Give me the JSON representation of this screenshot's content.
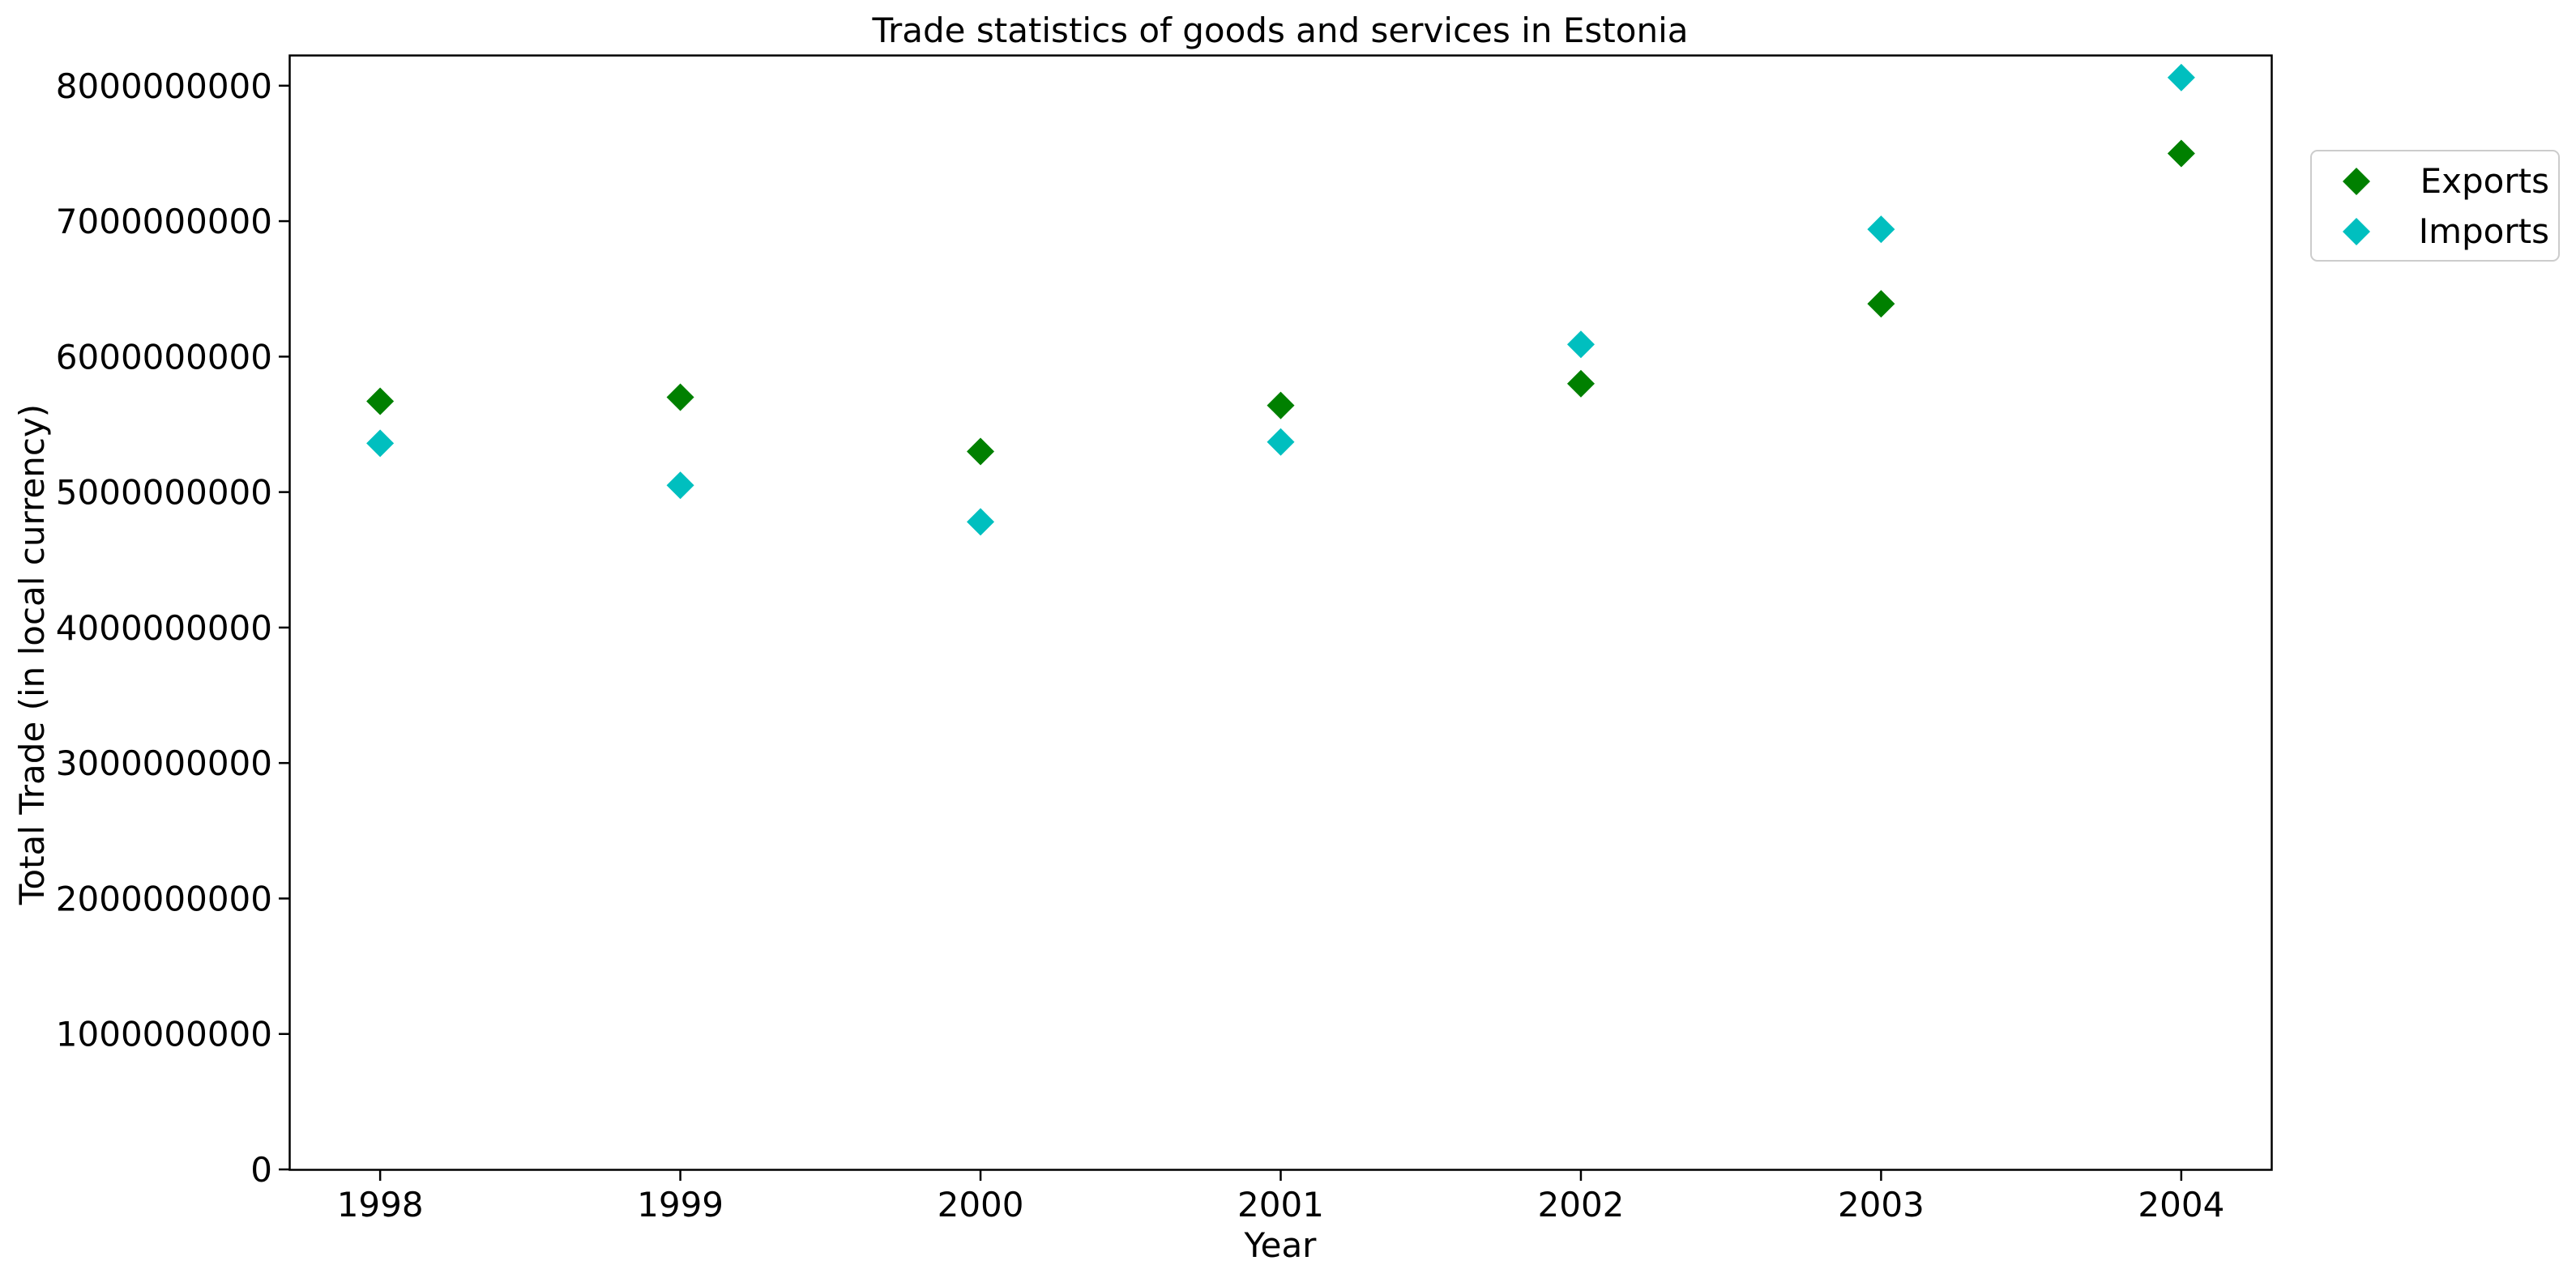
{
  "chart_data": {
    "type": "scatter",
    "title": "Trade statistics of goods and services in Estonia",
    "xlabel": "Year",
    "ylabel": "Total Trade (in local currency)",
    "x": [
      1998,
      1999,
      2000,
      2001,
      2002,
      2003,
      2004
    ],
    "xlim": [
      1997.7,
      2004.3
    ],
    "ylim": [
      0,
      8220000000
    ],
    "yticks": [
      0,
      1000000000,
      2000000000,
      3000000000,
      4000000000,
      5000000000,
      6000000000,
      7000000000,
      8000000000
    ],
    "ytick_labels": [
      "0",
      "1000000000",
      "2000000000",
      "3000000000",
      "4000000000",
      "5000000000",
      "6000000000",
      "7000000000",
      "8000000000"
    ],
    "xtick_labels": [
      "1998",
      "1999",
      "2000",
      "2001",
      "2002",
      "2003",
      "2004"
    ],
    "grid": false,
    "legend_position": "outside top-right",
    "marker": "diamond",
    "series": [
      {
        "name": "Exports",
        "color": "#008000",
        "values": [
          5670000000,
          5700000000,
          5300000000,
          5640000000,
          5800000000,
          6390000000,
          7500000000
        ]
      },
      {
        "name": "Imports",
        "color": "#00BFBF",
        "values": [
          5360000000,
          5050000000,
          4780000000,
          5370000000,
          6090000000,
          6940000000,
          8060000000
        ]
      }
    ]
  }
}
